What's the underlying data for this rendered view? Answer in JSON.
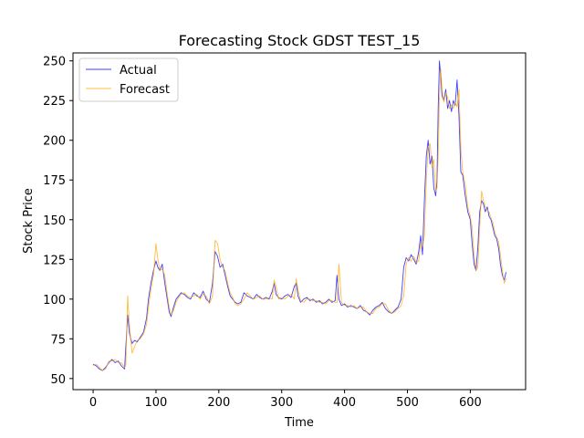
{
  "chart_data": {
    "type": "line",
    "title": "Forecasting Stock GDST TEST_15",
    "xlabel": "Time",
    "ylabel": "Stock Price",
    "xlim": [
      -32,
      688
    ],
    "ylim": [
      43,
      255
    ],
    "xticks": [
      0,
      100,
      200,
      300,
      400,
      500,
      600
    ],
    "yticks": [
      50,
      75,
      100,
      125,
      150,
      175,
      200,
      225,
      250
    ],
    "grid": false,
    "legend_position": "top-left",
    "series": [
      {
        "name": "Actual",
        "color": "#0000ff",
        "points": [
          [
            0,
            59
          ],
          [
            5,
            58
          ],
          [
            10,
            56
          ],
          [
            15,
            55
          ],
          [
            20,
            57
          ],
          [
            25,
            60
          ],
          [
            30,
            62
          ],
          [
            35,
            60
          ],
          [
            40,
            61
          ],
          [
            45,
            58
          ],
          [
            50,
            56
          ],
          [
            52,
            70
          ],
          [
            55,
            90
          ],
          [
            58,
            78
          ],
          [
            62,
            72
          ],
          [
            66,
            74
          ],
          [
            70,
            73
          ],
          [
            75,
            76
          ],
          [
            80,
            79
          ],
          [
            85,
            88
          ],
          [
            88,
            100
          ],
          [
            92,
            110
          ],
          [
            96,
            118
          ],
          [
            100,
            124
          ],
          [
            103,
            120
          ],
          [
            106,
            118
          ],
          [
            110,
            122
          ],
          [
            114,
            110
          ],
          [
            118,
            100
          ],
          [
            121,
            92
          ],
          [
            124,
            89
          ],
          [
            128,
            95
          ],
          [
            132,
            100
          ],
          [
            136,
            102
          ],
          [
            140,
            104
          ],
          [
            145,
            103
          ],
          [
            150,
            101
          ],
          [
            155,
            100
          ],
          [
            160,
            104
          ],
          [
            165,
            102
          ],
          [
            170,
            101
          ],
          [
            175,
            105
          ],
          [
            180,
            100
          ],
          [
            185,
            98
          ],
          [
            190,
            110
          ],
          [
            194,
            130
          ],
          [
            198,
            127
          ],
          [
            202,
            120
          ],
          [
            206,
            122
          ],
          [
            210,
            115
          ],
          [
            214,
            108
          ],
          [
            218,
            102
          ],
          [
            222,
            100
          ],
          [
            226,
            98
          ],
          [
            230,
            97
          ],
          [
            235,
            98
          ],
          [
            240,
            104
          ],
          [
            245,
            102
          ],
          [
            250,
            101
          ],
          [
            255,
            100
          ],
          [
            260,
            103
          ],
          [
            265,
            101
          ],
          [
            270,
            100
          ],
          [
            275,
            101
          ],
          [
            280,
            100
          ],
          [
            285,
            105
          ],
          [
            288,
            110
          ],
          [
            291,
            103
          ],
          [
            295,
            101
          ],
          [
            300,
            100
          ],
          [
            305,
            102
          ],
          [
            310,
            103
          ],
          [
            315,
            101
          ],
          [
            320,
            108
          ],
          [
            323,
            110
          ],
          [
            326,
            102
          ],
          [
            330,
            98
          ],
          [
            335,
            100
          ],
          [
            340,
            101
          ],
          [
            345,
            99
          ],
          [
            350,
            100
          ],
          [
            355,
            98
          ],
          [
            360,
            99
          ],
          [
            365,
            97
          ],
          [
            370,
            98
          ],
          [
            375,
            100
          ],
          [
            380,
            98
          ],
          [
            385,
            99
          ],
          [
            388,
            115
          ],
          [
            391,
            100
          ],
          [
            395,
            96
          ],
          [
            400,
            97
          ],
          [
            405,
            95
          ],
          [
            410,
            96
          ],
          [
            415,
            95
          ],
          [
            420,
            94
          ],
          [
            425,
            96
          ],
          [
            430,
            93
          ],
          [
            435,
            92
          ],
          [
            440,
            90
          ],
          [
            445,
            93
          ],
          [
            450,
            95
          ],
          [
            455,
            96
          ],
          [
            460,
            98
          ],
          [
            465,
            94
          ],
          [
            470,
            92
          ],
          [
            475,
            91
          ],
          [
            480,
            93
          ],
          [
            485,
            95
          ],
          [
            490,
            100
          ],
          [
            494,
            120
          ],
          [
            498,
            126
          ],
          [
            502,
            124
          ],
          [
            506,
            128
          ],
          [
            510,
            125
          ],
          [
            514,
            122
          ],
          [
            518,
            130
          ],
          [
            521,
            140
          ],
          [
            524,
            128
          ],
          [
            527,
            162
          ],
          [
            530,
            190
          ],
          [
            533,
            200
          ],
          [
            536,
            185
          ],
          [
            539,
            190
          ],
          [
            542,
            170
          ],
          [
            545,
            165
          ],
          [
            547,
            175
          ],
          [
            549,
            220
          ],
          [
            551,
            250
          ],
          [
            553,
            240
          ],
          [
            555,
            228
          ],
          [
            558,
            225
          ],
          [
            561,
            232
          ],
          [
            564,
            220
          ],
          [
            567,
            225
          ],
          [
            570,
            218
          ],
          [
            573,
            225
          ],
          [
            576,
            222
          ],
          [
            579,
            238
          ],
          [
            582,
            215
          ],
          [
            585,
            180
          ],
          [
            588,
            178
          ],
          [
            592,
            165
          ],
          [
            596,
            155
          ],
          [
            600,
            150
          ],
          [
            603,
            135
          ],
          [
            606,
            122
          ],
          [
            609,
            118
          ],
          [
            612,
            132
          ],
          [
            615,
            155
          ],
          [
            618,
            162
          ],
          [
            621,
            160
          ],
          [
            624,
            155
          ],
          [
            627,
            158
          ],
          [
            630,
            152
          ],
          [
            633,
            150
          ],
          [
            636,
            145
          ],
          [
            639,
            140
          ],
          [
            642,
            138
          ],
          [
            645,
            132
          ],
          [
            648,
            122
          ],
          [
            651,
            115
          ],
          [
            654,
            112
          ],
          [
            657,
            117
          ]
        ]
      },
      {
        "name": "Forecast",
        "color": "#ffa500",
        "points": [
          [
            0,
            58
          ],
          [
            5,
            59
          ],
          [
            10,
            57
          ],
          [
            15,
            55
          ],
          [
            20,
            56
          ],
          [
            25,
            61
          ],
          [
            30,
            61
          ],
          [
            35,
            62
          ],
          [
            40,
            60
          ],
          [
            45,
            60
          ],
          [
            50,
            57
          ],
          [
            52,
            58
          ],
          [
            55,
            102
          ],
          [
            58,
            82
          ],
          [
            62,
            66
          ],
          [
            66,
            70
          ],
          [
            70,
            74
          ],
          [
            75,
            75
          ],
          [
            80,
            78
          ],
          [
            85,
            84
          ],
          [
            88,
            95
          ],
          [
            92,
            106
          ],
          [
            96,
            115
          ],
          [
            100,
            135
          ],
          [
            103,
            125
          ],
          [
            106,
            118
          ],
          [
            110,
            119
          ],
          [
            114,
            115
          ],
          [
            118,
            103
          ],
          [
            121,
            95
          ],
          [
            124,
            90
          ],
          [
            128,
            93
          ],
          [
            132,
            98
          ],
          [
            136,
            101
          ],
          [
            140,
            103
          ],
          [
            145,
            104
          ],
          [
            150,
            102
          ],
          [
            155,
            101
          ],
          [
            160,
            102
          ],
          [
            165,
            103
          ],
          [
            170,
            100
          ],
          [
            175,
            103
          ],
          [
            180,
            102
          ],
          [
            185,
            97
          ],
          [
            190,
            102
          ],
          [
            194,
            137
          ],
          [
            198,
            135
          ],
          [
            202,
            125
          ],
          [
            206,
            120
          ],
          [
            210,
            118
          ],
          [
            214,
            110
          ],
          [
            218,
            104
          ],
          [
            222,
            101
          ],
          [
            226,
            97
          ],
          [
            230,
            96
          ],
          [
            235,
            97
          ],
          [
            240,
            100
          ],
          [
            245,
            104
          ],
          [
            250,
            102
          ],
          [
            255,
            100
          ],
          [
            260,
            101
          ],
          [
            265,
            102
          ],
          [
            270,
            100
          ],
          [
            275,
            100
          ],
          [
            280,
            101
          ],
          [
            285,
            100
          ],
          [
            288,
            112
          ],
          [
            291,
            108
          ],
          [
            295,
            100
          ],
          [
            300,
            101
          ],
          [
            305,
            100
          ],
          [
            310,
            102
          ],
          [
            315,
            103
          ],
          [
            320,
            100
          ],
          [
            323,
            113
          ],
          [
            326,
            106
          ],
          [
            330,
            99
          ],
          [
            335,
            98
          ],
          [
            340,
            100
          ],
          [
            345,
            100
          ],
          [
            350,
            99
          ],
          [
            355,
            99
          ],
          [
            360,
            98
          ],
          [
            365,
            98
          ],
          [
            370,
            97
          ],
          [
            375,
            99
          ],
          [
            380,
            99
          ],
          [
            385,
            98
          ],
          [
            388,
            98
          ],
          [
            391,
            122
          ],
          [
            395,
            98
          ],
          [
            400,
            96
          ],
          [
            405,
            96
          ],
          [
            410,
            95
          ],
          [
            415,
            96
          ],
          [
            420,
            94
          ],
          [
            425,
            95
          ],
          [
            430,
            95
          ],
          [
            435,
            92
          ],
          [
            440,
            91
          ],
          [
            445,
            91
          ],
          [
            450,
            94
          ],
          [
            455,
            95
          ],
          [
            460,
            97
          ],
          [
            465,
            97
          ],
          [
            470,
            93
          ],
          [
            475,
            91
          ],
          [
            480,
            92
          ],
          [
            485,
            94
          ],
          [
            490,
            96
          ],
          [
            494,
            102
          ],
          [
            498,
            122
          ],
          [
            502,
            126
          ],
          [
            506,
            124
          ],
          [
            510,
            127
          ],
          [
            514,
            123
          ],
          [
            518,
            124
          ],
          [
            521,
            135
          ],
          [
            524,
            133
          ],
          [
            527,
            140
          ],
          [
            530,
            175
          ],
          [
            533,
            195
          ],
          [
            536,
            198
          ],
          [
            539,
            183
          ],
          [
            542,
            188
          ],
          [
            545,
            168
          ],
          [
            547,
            170
          ],
          [
            549,
            190
          ],
          [
            551,
            228
          ],
          [
            553,
            245
          ],
          [
            555,
            232
          ],
          [
            558,
            224
          ],
          [
            561,
            230
          ],
          [
            564,
            227
          ],
          [
            567,
            220
          ],
          [
            570,
            222
          ],
          [
            573,
            220
          ],
          [
            576,
            224
          ],
          [
            579,
            221
          ],
          [
            582,
            232
          ],
          [
            585,
            195
          ],
          [
            588,
            180
          ],
          [
            592,
            172
          ],
          [
            596,
            158
          ],
          [
            600,
            152
          ],
          [
            603,
            145
          ],
          [
            606,
            128
          ],
          [
            609,
            118
          ],
          [
            612,
            120
          ],
          [
            615,
            145
          ],
          [
            618,
            168
          ],
          [
            621,
            162
          ],
          [
            624,
            158
          ],
          [
            627,
            156
          ],
          [
            630,
            155
          ],
          [
            633,
            151
          ],
          [
            636,
            148
          ],
          [
            639,
            142
          ],
          [
            642,
            139
          ],
          [
            645,
            136
          ],
          [
            648,
            128
          ],
          [
            651,
            118
          ],
          [
            654,
            110
          ],
          [
            657,
            113
          ]
        ]
      }
    ]
  }
}
